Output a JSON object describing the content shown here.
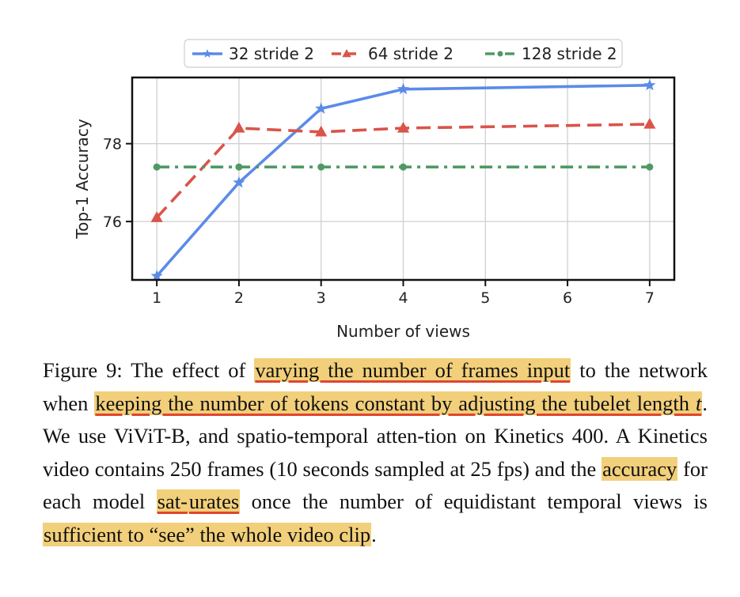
{
  "chart_data": {
    "type": "line",
    "xlabel": "Number of views",
    "ylabel": "Top-1 Accuracy",
    "xlim": [
      0.7,
      7.3
    ],
    "ylim": [
      74.5,
      79.7
    ],
    "xticks": [
      1,
      2,
      3,
      4,
      5,
      6,
      7
    ],
    "yticks": [
      76,
      78
    ],
    "grid": true,
    "legend_position": "top-center",
    "series": [
      {
        "name": "32 stride 2",
        "color": "#5b8be8",
        "marker": "star",
        "dash": "solid",
        "x": [
          1,
          2,
          3,
          4,
          7
        ],
        "values": [
          74.6,
          77.0,
          78.9,
          79.4,
          79.5
        ]
      },
      {
        "name": "64 stride 2",
        "color": "#d9544a",
        "marker": "triangle",
        "dash": "dashed",
        "x": [
          1,
          2,
          3,
          4,
          7
        ],
        "values": [
          76.1,
          78.4,
          78.3,
          78.4,
          78.5
        ]
      },
      {
        "name": "128 stride 2",
        "color": "#4f9a64",
        "marker": "circle",
        "dash": "dashdot",
        "x": [
          1,
          2,
          3,
          4,
          7
        ],
        "values": [
          77.4,
          77.4,
          77.4,
          77.4,
          77.4
        ]
      }
    ]
  },
  "caption": {
    "s1": "Figure 9: The effect of ",
    "h1": "varying the number of frames input",
    "s2": " to the network when ",
    "h2": "keeping the number of tokens constant by adjusting the tubelet length ",
    "h2_var": "t",
    "s3": ". We use ViViT-B, and spatio-temporal atten-tion on Kinetics 400. A Kinetics video contains 250 frames (10 seconds sampled at 25 fps) and the ",
    "h3": "accuracy",
    "s4": " for each model ",
    "h4a": "sat-",
    "h4b": "urates",
    "s5": " once the number of equidistant temporal views is ",
    "h5": "sufficient to “see” the whole video clip",
    "s6": "."
  }
}
